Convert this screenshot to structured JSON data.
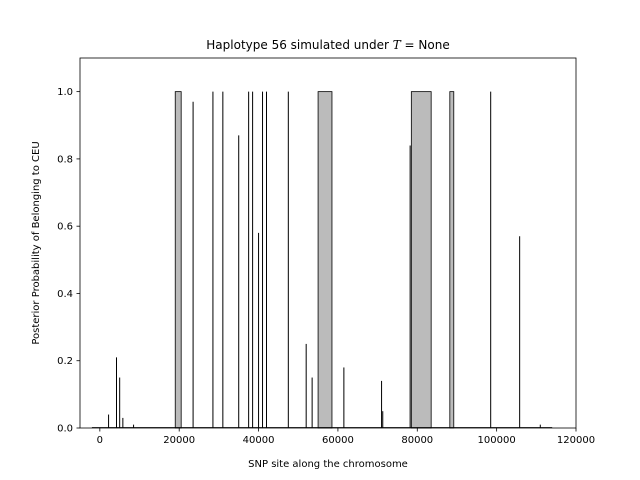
{
  "chart_data": {
    "type": "area",
    "title_prefix": "Haplotype 56 simulated under ",
    "title_symbol": "T",
    "title_suffix": " =  None",
    "xlabel": "SNP site along the chromosome",
    "ylabel": "Posterior Probability of Belonging to CEU",
    "xlim": [
      -5000,
      120000
    ],
    "ylim": [
      0.0,
      1.1
    ],
    "x_ticks": [
      0,
      20000,
      40000,
      60000,
      80000,
      100000,
      120000
    ],
    "x_tick_labels": [
      "0",
      "20000",
      "40000",
      "60000",
      "80000",
      "100000",
      "120000"
    ],
    "y_ticks": [
      0.0,
      0.2,
      0.4,
      0.6,
      0.8,
      1.0
    ],
    "y_tick_labels": [
      "0.0",
      "0.2",
      "0.4",
      "0.6",
      "0.8",
      "1.0"
    ],
    "grid": false,
    "fill_color": "#bbbbbb",
    "line_color": "#000000",
    "blocks": [
      {
        "x_start": 19000,
        "x_end": 20500,
        "value": 1.0
      },
      {
        "x_start": 55000,
        "x_end": 58500,
        "value": 1.0
      },
      {
        "x_start": 78500,
        "x_end": 83500,
        "value": 1.0
      },
      {
        "x_start": 88200,
        "x_end": 89200,
        "value": 1.0
      }
    ],
    "spikes": [
      {
        "x": 2200,
        "value": 0.04
      },
      {
        "x": 4200,
        "value": 0.21
      },
      {
        "x": 5000,
        "value": 0.15
      },
      {
        "x": 5800,
        "value": 0.03
      },
      {
        "x": 8500,
        "value": 0.01
      },
      {
        "x": 23500,
        "value": 0.97
      },
      {
        "x": 28500,
        "value": 1.0
      },
      {
        "x": 31000,
        "value": 1.0
      },
      {
        "x": 35000,
        "value": 0.87
      },
      {
        "x": 37500,
        "value": 1.0
      },
      {
        "x": 38500,
        "value": 1.0
      },
      {
        "x": 40000,
        "value": 0.58
      },
      {
        "x": 41000,
        "value": 1.0
      },
      {
        "x": 42000,
        "value": 1.0
      },
      {
        "x": 47500,
        "value": 1.0
      },
      {
        "x": 52000,
        "value": 0.25
      },
      {
        "x": 53500,
        "value": 0.15
      },
      {
        "x": 61500,
        "value": 0.18
      },
      {
        "x": 71000,
        "value": 0.14
      },
      {
        "x": 71300,
        "value": 0.05
      },
      {
        "x": 78200,
        "value": 0.84
      },
      {
        "x": 98500,
        "value": 1.0
      },
      {
        "x": 105800,
        "value": 0.57
      },
      {
        "x": 111000,
        "value": 0.01
      }
    ]
  }
}
